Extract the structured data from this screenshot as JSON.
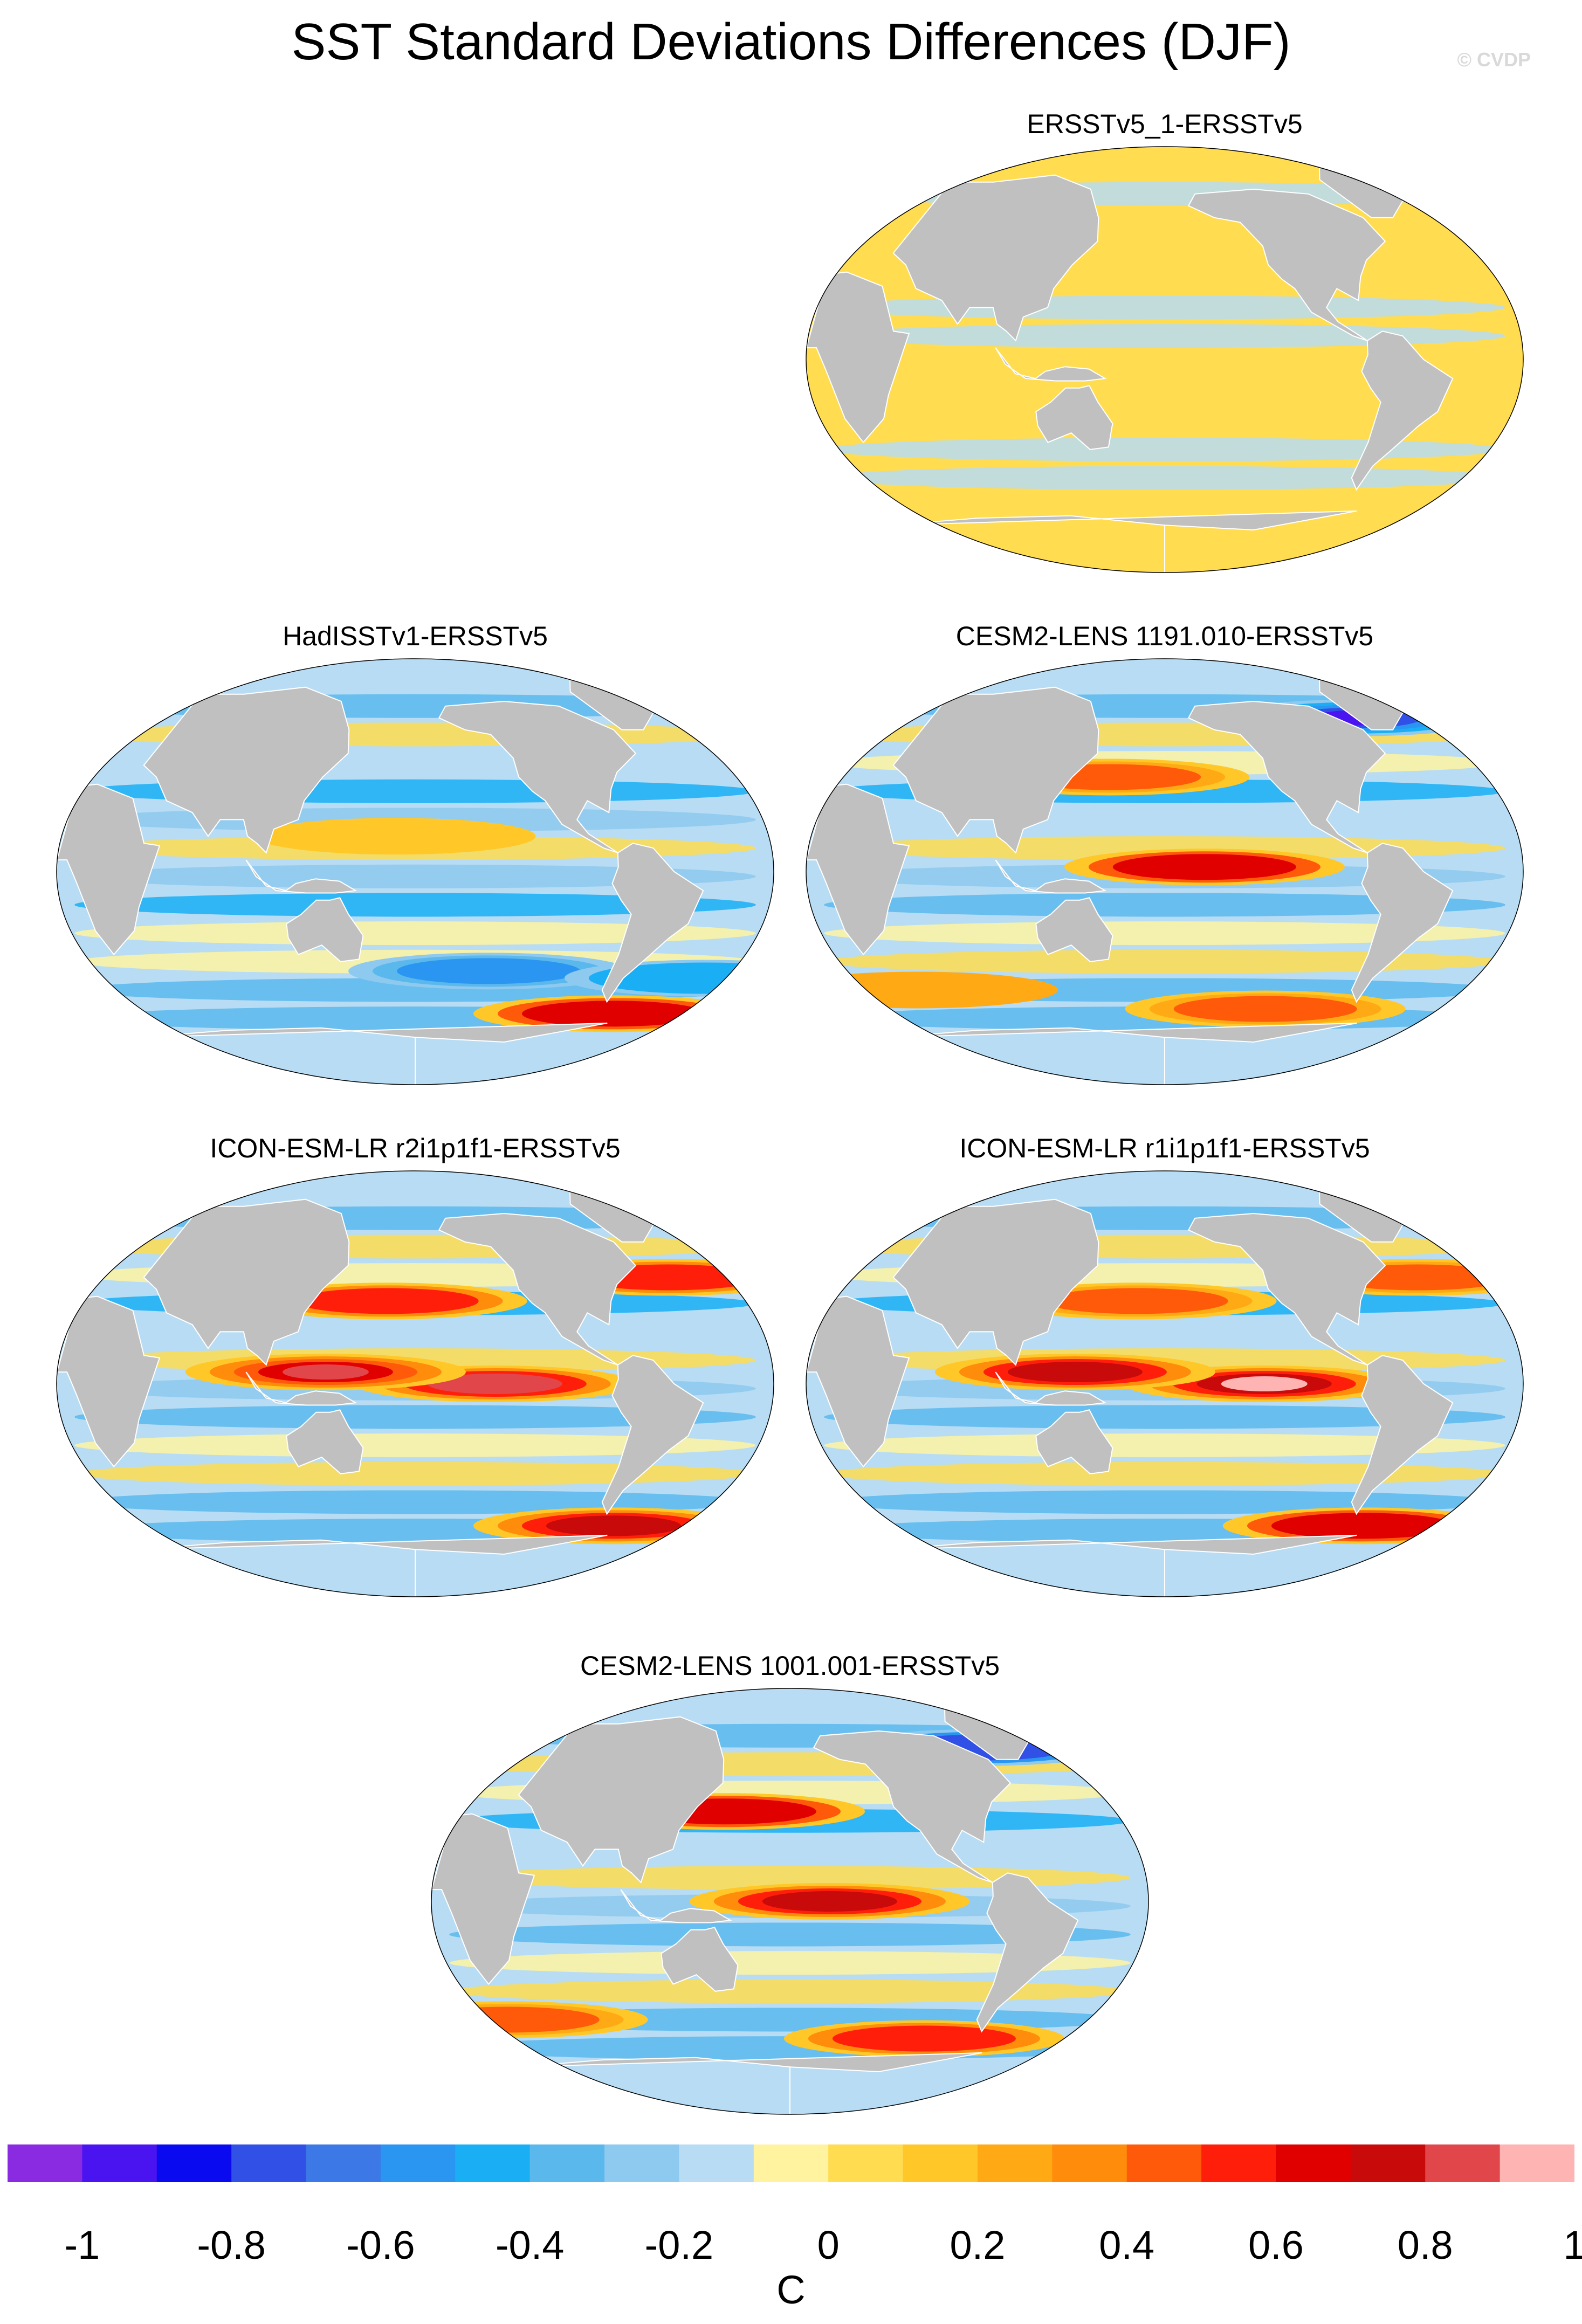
{
  "figure": {
    "title": "SST Standard Deviations Differences (DJF)",
    "credit": "© CVDP",
    "units": "C"
  },
  "panels": [
    {
      "id": "p1",
      "title": "ERSSTv5_1-ERSSTv5",
      "pattern": "mostly-positive-small",
      "blobs": []
    },
    {
      "id": "p2",
      "title": "HadISSTv1-ERSSTv5",
      "pattern": "mostly-negative",
      "blobs": [
        {
          "lon": -140,
          "lat": -42,
          "v": -0.5
        },
        {
          "lon": -20,
          "lat": -45,
          "v": -0.4
        },
        {
          "lon": -60,
          "lat": -60,
          "v": 0.7
        },
        {
          "lon": 170,
          "lat": 15,
          "v": 0.2
        }
      ]
    },
    {
      "id": "p3",
      "title": "CESM2-LENS 1191.010-ERSSTv5",
      "pattern": "equatorial-warm",
      "blobs": [
        {
          "lon": -160,
          "lat": 2,
          "v": 0.7
        },
        {
          "lon": 150,
          "lat": 40,
          "v": 0.5
        },
        {
          "lon": -60,
          "lat": 65,
          "v": -0.9
        },
        {
          "lon": -120,
          "lat": -58,
          "v": 0.5
        },
        {
          "lon": 40,
          "lat": -50,
          "v": 0.3
        }
      ]
    },
    {
      "id": "p4",
      "title": "ICON-ESM-LR r2i1p1f1-ERSSTv5",
      "pattern": "equatorial-warm",
      "blobs": [
        {
          "lon": -140,
          "lat": 0,
          "v": 0.85
        },
        {
          "lon": 135,
          "lat": 5,
          "v": 0.9
        },
        {
          "lon": 165,
          "lat": 35,
          "v": 0.6
        },
        {
          "lon": -60,
          "lat": -60,
          "v": 0.8
        },
        {
          "lon": -40,
          "lat": 45,
          "v": 0.6
        }
      ]
    },
    {
      "id": "p5",
      "title": "ICON-ESM-LR r1i1p1f1-ERSSTv5",
      "pattern": "equatorial-warm",
      "blobs": [
        {
          "lon": -130,
          "lat": 0,
          "v": 1.0
        },
        {
          "lon": 135,
          "lat": 5,
          "v": 0.8
        },
        {
          "lon": 165,
          "lat": 35,
          "v": 0.5
        },
        {
          "lon": -60,
          "lat": -60,
          "v": 0.7
        },
        {
          "lon": -40,
          "lat": 45,
          "v": 0.5
        }
      ]
    },
    {
      "id": "p6",
      "title": "CESM2-LENS 1001.001-ERSSTv5",
      "pattern": "equatorial-warm",
      "blobs": [
        {
          "lon": -160,
          "lat": 0,
          "v": 0.8
        },
        {
          "lon": 145,
          "lat": 38,
          "v": 0.7
        },
        {
          "lon": -60,
          "lat": 65,
          "v": -0.7
        },
        {
          "lon": -100,
          "lat": -58,
          "v": 0.6
        },
        {
          "lon": 20,
          "lat": -50,
          "v": 0.5
        }
      ]
    }
  ],
  "colorbar": {
    "colors": [
      "#8a2be2",
      "#4a14f0",
      "#0a0af0",
      "#3050e6",
      "#3c78e6",
      "#2a96f2",
      "#1aaff5",
      "#5ab8ec",
      "#8ec9ef",
      "#b7dcf3",
      "#fff3a0",
      "#ffdc50",
      "#ffc828",
      "#ffaa14",
      "#ff8c0a",
      "#ff5a0a",
      "#ff1e0a",
      "#e10000",
      "#c80a0a",
      "#e1464b",
      "#ffb4b4"
    ],
    "tick_labels": [
      "-1",
      "-0.8",
      "-0.6",
      "-0.4",
      "-0.2",
      "0",
      "0.2",
      "0.4",
      "0.6",
      "0.8",
      "1"
    ]
  },
  "land_color": "#c0c0c0",
  "missing_color": "#ffffff"
}
